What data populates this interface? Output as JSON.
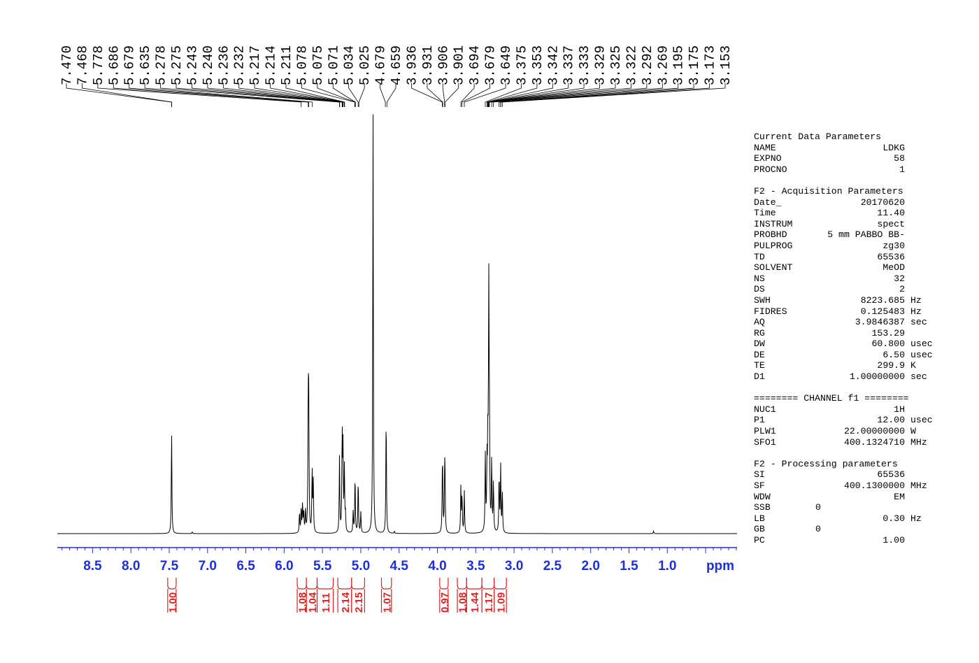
{
  "chart_data": {
    "type": "line",
    "title": "",
    "xlabel": "ppm",
    "ylabel": "",
    "x_reversed": true,
    "xlim": [
      8.96,
      0.09
    ],
    "x_ticks": [
      "8.5",
      "8.0",
      "7.5",
      "7.0",
      "6.5",
      "6.0",
      "5.5",
      "5.0",
      "4.5",
      "4.0",
      "3.5",
      "3.0",
      "2.5",
      "2.0",
      "1.5",
      "1.0"
    ],
    "x_tick_values": [
      8.5,
      8.0,
      7.5,
      7.0,
      6.5,
      6.0,
      5.5,
      5.0,
      4.5,
      4.0,
      3.5,
      3.0,
      2.5,
      2.0,
      1.5,
      1.0
    ],
    "grid": false,
    "peak_labels": [
      "7.470",
      "7.468",
      "5.778",
      "5.686",
      "5.679",
      "5.635",
      "5.278",
      "5.275",
      "5.243",
      "5.240",
      "5.236",
      "5.232",
      "5.217",
      "5.214",
      "5.211",
      "5.078",
      "5.075",
      "5.071",
      "5.034",
      "5.025",
      "4.679",
      "4.659",
      "3.936",
      "3.931",
      "3.906",
      "3.901",
      "3.694",
      "3.679",
      "3.649",
      "3.375",
      "3.353",
      "3.342",
      "3.337",
      "3.333",
      "3.329",
      "3.325",
      "3.322",
      "3.292",
      "3.269",
      "3.195",
      "3.175",
      "3.173",
      "3.153"
    ],
    "peak_values": [
      7.47,
      7.468,
      5.778,
      5.686,
      5.679,
      5.635,
      5.278,
      5.275,
      5.243,
      5.24,
      5.236,
      5.232,
      5.217,
      5.214,
      5.211,
      5.078,
      5.075,
      5.071,
      5.034,
      5.025,
      4.679,
      4.659,
      3.936,
      3.931,
      3.906,
      3.901,
      3.694,
      3.679,
      3.649,
      3.375,
      3.353,
      3.342,
      3.337,
      3.333,
      3.329,
      3.325,
      3.322,
      3.292,
      3.269,
      3.195,
      3.175,
      3.173,
      3.153
    ],
    "integrals": [
      {
        "label": "1.00",
        "from": 7.52,
        "to": 7.41
      },
      {
        "label": "1.08",
        "from": 5.83,
        "to": 5.71
      },
      {
        "label": "1.04",
        "from": 5.71,
        "to": 5.57
      },
      {
        "label": "1.11",
        "from": 5.57,
        "to": 5.36
      },
      {
        "label": "2.14",
        "from": 5.3,
        "to": 5.12
      },
      {
        "label": "2.15",
        "from": 5.12,
        "to": 4.95
      },
      {
        "label": "1.07",
        "from": 4.73,
        "to": 4.6
      },
      {
        "label": "0.97",
        "from": 3.97,
        "to": 3.86
      },
      {
        "label": "1.08",
        "from": 3.74,
        "to": 3.62
      },
      {
        "label": "1.44",
        "from": 3.62,
        "to": 3.42
      },
      {
        "label": "1.17",
        "from": 3.42,
        "to": 3.26
      },
      {
        "label": "1.09",
        "from": 3.26,
        "to": 3.1
      }
    ],
    "series": [
      {
        "peaks": [
          {
            "ppm": 7.469,
            "height": 0.245
          },
          {
            "ppm": 7.2,
            "height": 0.004
          },
          {
            "ppm": 5.8,
            "height": 0.05
          },
          {
            "ppm": 5.778,
            "height": 0.06
          },
          {
            "ppm": 5.76,
            "height": 0.07
          },
          {
            "ppm": 5.745,
            "height": 0.05
          },
          {
            "ppm": 5.722,
            "height": 0.055
          },
          {
            "ppm": 5.686,
            "height": 0.31
          },
          {
            "ppm": 5.679,
            "height": 0.27
          },
          {
            "ppm": 5.635,
            "height": 0.15
          },
          {
            "ppm": 5.62,
            "height": 0.12
          },
          {
            "ppm": 5.278,
            "height": 0.18
          },
          {
            "ppm": 5.243,
            "height": 0.24
          },
          {
            "ppm": 5.232,
            "height": 0.19
          },
          {
            "ppm": 5.214,
            "height": 0.15
          },
          {
            "ppm": 5.2,
            "height": 0.04
          },
          {
            "ppm": 5.1,
            "height": 0.05
          },
          {
            "ppm": 5.075,
            "height": 0.14
          },
          {
            "ppm": 5.034,
            "height": 0.13
          },
          {
            "ppm": 5.0,
            "height": 0.05
          },
          {
            "ppm": 4.84,
            "height": 1.0
          },
          {
            "ppm": 4.669,
            "height": 0.29
          },
          {
            "ppm": 4.56,
            "height": 0.005
          },
          {
            "ppm": 3.936,
            "height": 0.11
          },
          {
            "ppm": 3.931,
            "height": 0.1
          },
          {
            "ppm": 3.906,
            "height": 0.12
          },
          {
            "ppm": 3.901,
            "height": 0.11
          },
          {
            "ppm": 3.694,
            "height": 0.11
          },
          {
            "ppm": 3.679,
            "height": 0.09
          },
          {
            "ppm": 3.649,
            "height": 0.1
          },
          {
            "ppm": 3.375,
            "height": 0.18
          },
          {
            "ppm": 3.353,
            "height": 0.15
          },
          {
            "ppm": 3.342,
            "height": 0.2
          },
          {
            "ppm": 3.33,
            "height": 0.55
          },
          {
            "ppm": 3.322,
            "height": 0.25
          },
          {
            "ppm": 3.292,
            "height": 0.17
          },
          {
            "ppm": 3.269,
            "height": 0.12
          },
          {
            "ppm": 3.195,
            "height": 0.14
          },
          {
            "ppm": 3.175,
            "height": 0.16
          },
          {
            "ppm": 3.153,
            "height": 0.1
          },
          {
            "ppm": 1.18,
            "height": 0.006
          }
        ]
      }
    ]
  },
  "params": {
    "current": {
      "title": "Current Data Parameters",
      "rows": [
        {
          "key": "NAME",
          "value": "LDKG",
          "unit": ""
        },
        {
          "key": "EXPNO",
          "value": "58",
          "unit": ""
        },
        {
          "key": "PROCNO",
          "value": "1",
          "unit": ""
        }
      ]
    },
    "acquisition": {
      "title": "F2 - Acquisition Parameters",
      "rows": [
        {
          "key": "Date_",
          "value": "20170620",
          "unit": ""
        },
        {
          "key": "Time",
          "value": "11.40",
          "unit": ""
        },
        {
          "key": "INSTRUM",
          "value": "spect",
          "unit": ""
        },
        {
          "key": "PROBHD",
          "value": "5 mm PABBO BB-",
          "unit": ""
        },
        {
          "key": "PULPROG",
          "value": "zg30",
          "unit": ""
        },
        {
          "key": "TD",
          "value": "65536",
          "unit": ""
        },
        {
          "key": "SOLVENT",
          "value": "MeOD",
          "unit": ""
        },
        {
          "key": "NS",
          "value": "32",
          "unit": ""
        },
        {
          "key": "DS",
          "value": "2",
          "unit": ""
        },
        {
          "key": "SWH",
          "value": "8223.685",
          "unit": "Hz"
        },
        {
          "key": "FIDRES",
          "value": "0.125483",
          "unit": "Hz"
        },
        {
          "key": "AQ",
          "value": "3.9846387",
          "unit": "sec"
        },
        {
          "key": "RG",
          "value": "153.29",
          "unit": ""
        },
        {
          "key": "DW",
          "value": "60.800",
          "unit": "usec"
        },
        {
          "key": "DE",
          "value": "6.50",
          "unit": "usec"
        },
        {
          "key": "TE",
          "value": "299.9",
          "unit": "K"
        },
        {
          "key": "D1",
          "value": "1.00000000",
          "unit": "sec"
        }
      ]
    },
    "channel": {
      "title": "======== CHANNEL f1 ========",
      "rows": [
        {
          "key": "NUC1",
          "value": "1H",
          "unit": ""
        },
        {
          "key": "P1",
          "value": "12.00",
          "unit": "usec"
        },
        {
          "key": "PLW1",
          "value": "22.00000000",
          "unit": "W"
        },
        {
          "key": "SFO1",
          "value": "400.1324710",
          "unit": "MHz"
        }
      ]
    },
    "processing": {
      "title": "F2 - Processing parameters",
      "rows": [
        {
          "key": "SI",
          "value": "65536",
          "unit": "",
          "mid": ""
        },
        {
          "key": "SF",
          "value": "400.1300000",
          "unit": "MHz",
          "mid": ""
        },
        {
          "key": "WDW",
          "value": "EM",
          "unit": "",
          "mid": ""
        },
        {
          "key": "SSB",
          "value": "",
          "unit": "",
          "mid": "0"
        },
        {
          "key": "LB",
          "value": "0.30",
          "unit": "Hz",
          "mid": ""
        },
        {
          "key": "GB",
          "value": "",
          "unit": "",
          "mid": "0"
        },
        {
          "key": "PC",
          "value": "1.00",
          "unit": "",
          "mid": ""
        }
      ]
    }
  },
  "colors": {
    "axis": "#1c2fd8",
    "integral": "#e02020",
    "spectrum": "#000000"
  }
}
